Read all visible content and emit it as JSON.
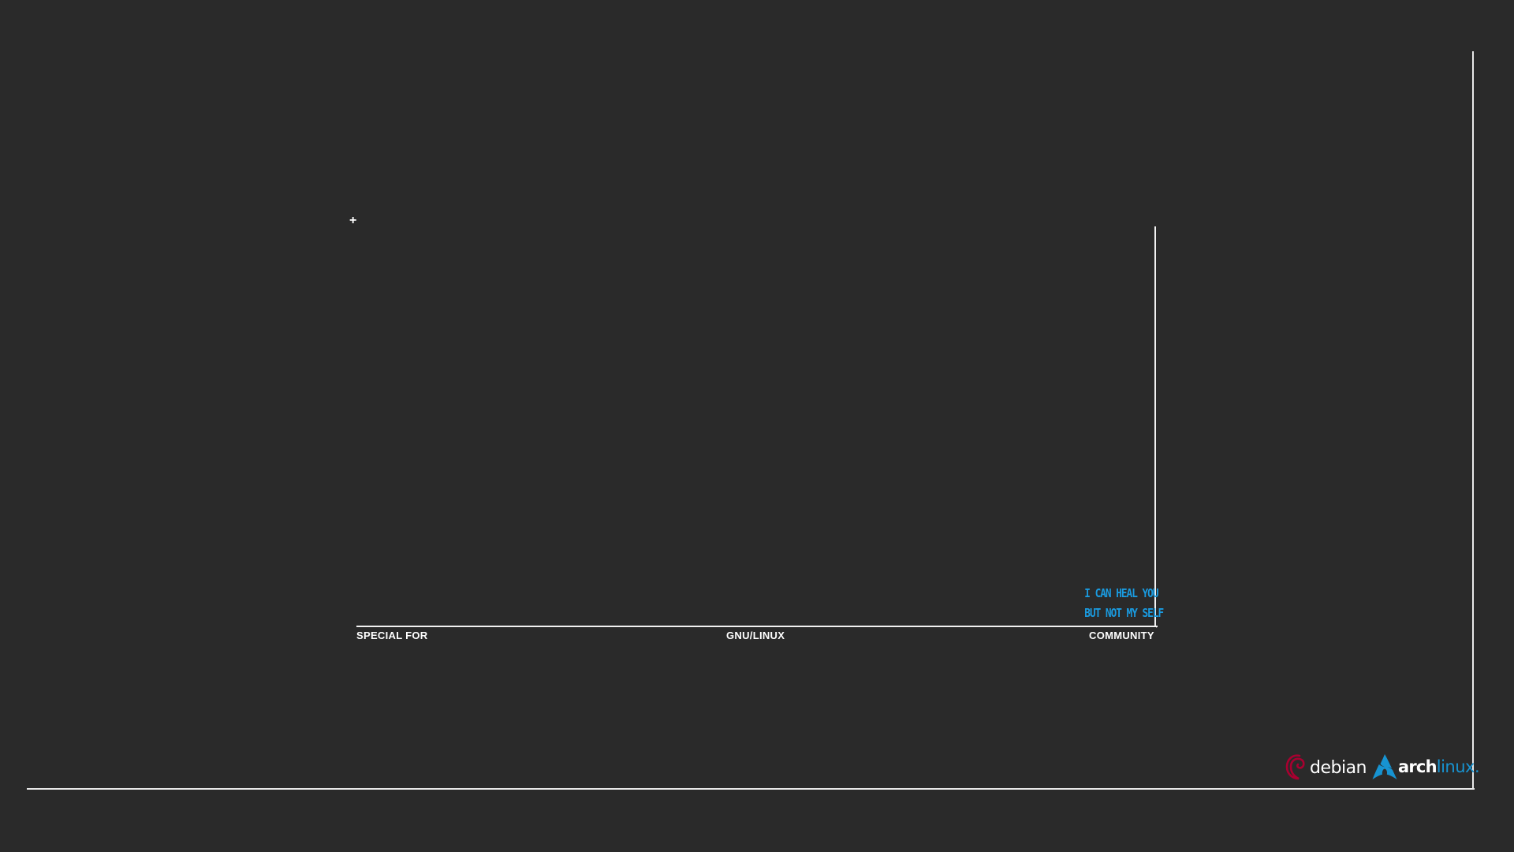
{
  "captions": {
    "left": "SPECIAL FOR",
    "middle": "GNU/LINUX",
    "right": "COMMUNITY"
  },
  "marks": {
    "plus": "+",
    "tick": "'"
  },
  "quote": {
    "line1": "I CAN HEAL YOU",
    "line2": "BUT NOT MY SELF"
  },
  "logos": {
    "debian": {
      "icon": "debian-swirl-icon",
      "wordmark": "debian",
      "color": "#a80030"
    },
    "arch": {
      "icon": "arch-triangle-icon",
      "wordmark_a": "arch",
      "wordmark_b": "linux.",
      "color": "#1793d1"
    }
  },
  "colors": {
    "background": "#2a2a2a",
    "lines": "#ececec",
    "quote": "#1a9be0"
  }
}
